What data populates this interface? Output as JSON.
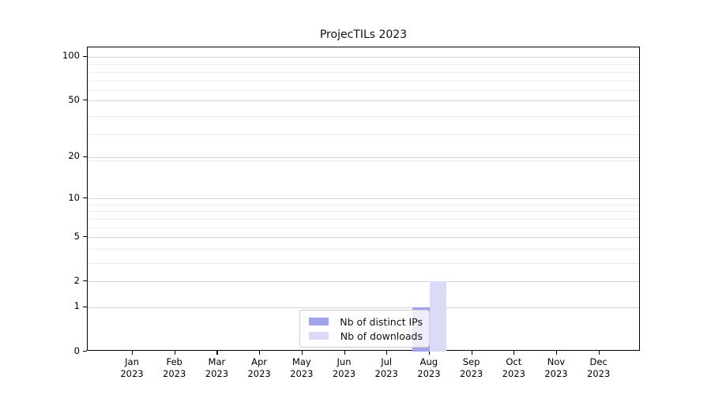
{
  "chart_data": {
    "type": "bar",
    "title": "ProjecTILs 2023",
    "categories": [
      "Jan 2023",
      "Feb 2023",
      "Mar 2023",
      "Apr 2023",
      "May 2023",
      "Jun 2023",
      "Jul 2023",
      "Aug 2023",
      "Sep 2023",
      "Oct 2023",
      "Nov 2023",
      "Dec 2023"
    ],
    "series": [
      {
        "name": "Nb of distinct IPs",
        "color": "#a3a3ec",
        "values": [
          0,
          0,
          0,
          0,
          0,
          0,
          0,
          1,
          0,
          0,
          0,
          0
        ]
      },
      {
        "name": "Nb of downloads",
        "color": "#dbdbf8",
        "values": [
          0,
          0,
          0,
          0,
          0,
          0,
          0,
          2,
          0,
          0,
          0,
          0
        ]
      }
    ],
    "y_scale": "log1p",
    "y_ticks": [
      0,
      1,
      2,
      5,
      10,
      20,
      50,
      100
    ],
    "y_tick_labels": [
      "0",
      "1",
      "2",
      "5",
      "10",
      "20",
      "50",
      "100"
    ],
    "y_minor_ticks": [
      3,
      4,
      6,
      7,
      8,
      9,
      19,
      29,
      39,
      59,
      69,
      79,
      89
    ],
    "ylim": [
      0,
      116
    ],
    "xlabel": "",
    "ylabel": "",
    "grid": "horizontal major+minor",
    "legend_position": "lower center",
    "colors": {
      "grid_major": "#d4d4d4",
      "grid_minor": "#ebebeb",
      "spine": "#000000",
      "background": "#ffffff",
      "text": "#111111"
    }
  }
}
